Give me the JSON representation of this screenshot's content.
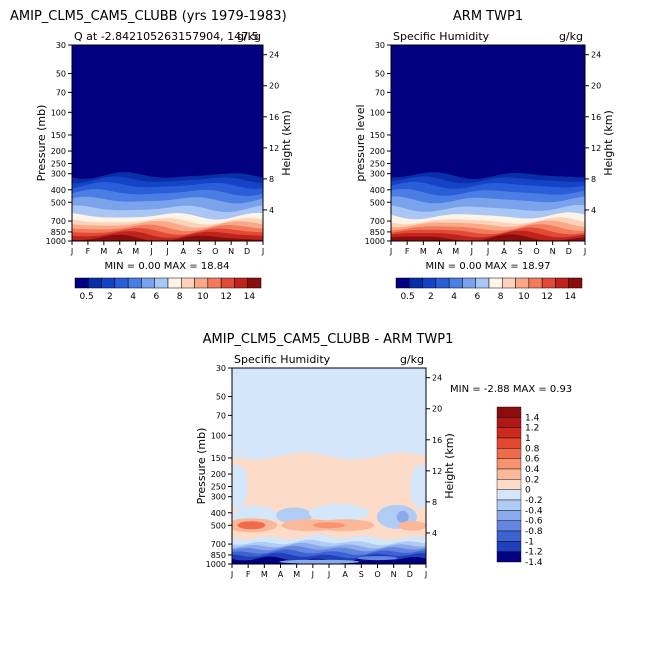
{
  "months": [
    "J",
    "F",
    "M",
    "A",
    "M",
    "J",
    "J",
    "A",
    "S",
    "O",
    "N",
    "D",
    "J"
  ],
  "pressure_ticks": [
    "30",
    "50",
    "70",
    "100",
    "150",
    "200",
    "250",
    "300",
    "400",
    "500",
    "700",
    "850",
    "1000"
  ],
  "height_ticks": [
    "24",
    "20",
    "16",
    "12",
    "8",
    "4"
  ],
  "panels": [
    {
      "id": "model",
      "title": "AMIP_CLM5_CAM5_CLUBB (yrs 1979-1983)",
      "subtitle_left": "Q at -2.842105263157904, 147.5",
      "units": "g/kg",
      "ylabel": "Pressure (mb)",
      "y2label": "Height (km)",
      "stats": "MIN =   0.00 MAX =  18.84",
      "colorbar_labels": [
        "0.5",
        "2",
        "4",
        "6",
        "8",
        "10",
        "12",
        "14"
      ]
    },
    {
      "id": "obs",
      "title": "ARM TWP1",
      "subtitle_left": "Specific Humidity",
      "units": "g/kg",
      "ylabel": "pressure level",
      "y2label": "Height (km)",
      "stats": "MIN =   0.00 MAX =  18.97",
      "colorbar_labels": [
        "0.5",
        "2",
        "4",
        "6",
        "8",
        "10",
        "12",
        "14"
      ]
    },
    {
      "id": "diff",
      "title": "AMIP_CLM5_CAM5_CLUBB - ARM TWP1",
      "subtitle_left": "Specific Humidity",
      "units": "g/kg",
      "ylabel": "Pressure (mb)",
      "y2label": "Height (km)",
      "stats": "MIN =  -2.88 MAX =   0.93",
      "colorbar_labels": [
        "1.4",
        "1.2",
        "1",
        "0.8",
        "0.6",
        "0.4",
        "0.2",
        "0",
        "-0.2",
        "-0.4",
        "-0.6",
        "-0.8",
        "-1",
        "-1.2",
        "-1.4"
      ]
    }
  ],
  "colors": {
    "abs_scale": [
      "#000080",
      "#0a2ea8",
      "#1443c8",
      "#2a5ed8",
      "#4a7ee4",
      "#7aa3ec",
      "#a9c6f4",
      "#fdf3e6",
      "#fcd2b8",
      "#f9a98a",
      "#f27b5c",
      "#e04a36",
      "#c0221c",
      "#8a0c0c"
    ],
    "diff_scale": [
      "#8a0c0c",
      "#b01818",
      "#cc2a1e",
      "#e2482f",
      "#f06b4c",
      "#f7936f",
      "#fbb899",
      "#fcdcc8",
      "#d4e6fa",
      "#b0cbf4",
      "#8aaaeb",
      "#6486e0",
      "#3d62d2",
      "#1f3fbb",
      "#000080"
    ]
  },
  "chart_data": [
    {
      "type": "heatmap",
      "title": "AMIP_CLM5_CAM5_CLUBB (yrs 1979-1983)",
      "subtitle": "Q at -2.842105263157904, 147.5",
      "units": "g/kg",
      "x": [
        "J",
        "F",
        "M",
        "A",
        "M",
        "J",
        "J",
        "A",
        "S",
        "O",
        "N",
        "D",
        "J"
      ],
      "xlabel": "",
      "ylabel": "Pressure (mb)",
      "y2label": "Height (km)",
      "ylim": [
        1000,
        30
      ],
      "y_scale": "log",
      "min": 0.0,
      "max": 18.84,
      "levels": [
        0.5,
        1,
        2,
        3,
        4,
        5,
        6,
        7,
        8,
        9,
        10,
        11,
        12,
        13,
        14
      ],
      "profile_pressure": [
        1000,
        850,
        700,
        500,
        400,
        300,
        250,
        200,
        100,
        30
      ],
      "profile_q_mean": [
        18.5,
        14.5,
        9.0,
        4.5,
        2.5,
        0.8,
        0.3,
        0.1,
        0.0,
        0.0
      ]
    },
    {
      "type": "heatmap",
      "title": "ARM TWP1",
      "subtitle": "Specific Humidity",
      "units": "g/kg",
      "x": [
        "J",
        "F",
        "M",
        "A",
        "M",
        "J",
        "J",
        "A",
        "S",
        "O",
        "N",
        "D",
        "J"
      ],
      "ylabel": "pressure level",
      "y2label": "Height (km)",
      "ylim": [
        1000,
        30
      ],
      "y_scale": "log",
      "min": 0.0,
      "max": 18.97,
      "profile_pressure": [
        1000,
        850,
        700,
        500,
        400,
        300,
        250,
        200,
        100,
        30
      ],
      "profile_q_mean": [
        18.7,
        14.0,
        8.5,
        4.0,
        2.2,
        0.7,
        0.3,
        0.1,
        0.0,
        0.0
      ]
    },
    {
      "type": "heatmap",
      "title": "AMIP_CLM5_CAM5_CLUBB - ARM TWP1",
      "subtitle": "Specific Humidity",
      "units": "g/kg",
      "x": [
        "J",
        "F",
        "M",
        "A",
        "M",
        "J",
        "J",
        "A",
        "S",
        "O",
        "N",
        "D",
        "J"
      ],
      "ylabel": "Pressure (mb)",
      "y2label": "Height (km)",
      "ylim": [
        1000,
        30
      ],
      "y_scale": "log",
      "min": -2.88,
      "max": 0.93,
      "levels": [
        -1.4,
        -1.2,
        -1,
        -0.8,
        -0.6,
        -0.4,
        -0.2,
        0,
        0.2,
        0.4,
        0.6,
        0.8,
        1,
        1.2,
        1.4
      ]
    }
  ]
}
